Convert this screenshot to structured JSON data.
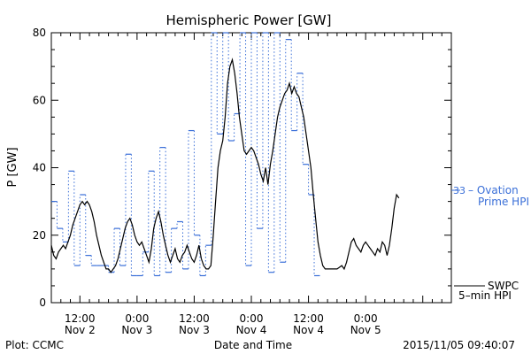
{
  "chart_data": {
    "type": "line",
    "title": "Hemispheric Power [GW]",
    "ylabel": "P [GW]",
    "xlabel": "Date and Time",
    "ylim": [
      0,
      80
    ],
    "xlim": [
      6,
      90
    ],
    "y_ticks": [
      0,
      20,
      40,
      60,
      80
    ],
    "x_ticks": [
      {
        "x": 12,
        "time": "12:00",
        "date": "Nov 2"
      },
      {
        "x": 24,
        "time": "0:00",
        "date": "Nov 3"
      },
      {
        "x": 36,
        "time": "12:00",
        "date": "Nov 3"
      },
      {
        "x": 48,
        "time": "0:00",
        "date": "Nov 4"
      },
      {
        "x": 60,
        "time": "12:00",
        "date": "Nov 4"
      },
      {
        "x": 72,
        "time": "0:00",
        "date": "Nov 5"
      }
    ],
    "series": [
      {
        "name": "Ovation Prime HPI",
        "color": "#3a6fd8",
        "style": "dotted-step",
        "points": [
          [
            6,
            30
          ],
          [
            7.2,
            22
          ],
          [
            8.4,
            18
          ],
          [
            9.6,
            39
          ],
          [
            10.8,
            11
          ],
          [
            12,
            32
          ],
          [
            13.2,
            14
          ],
          [
            14.4,
            11
          ],
          [
            15.6,
            11
          ],
          [
            16.8,
            11
          ],
          [
            18,
            9
          ],
          [
            19.2,
            22
          ],
          [
            20.4,
            11
          ],
          [
            21.6,
            44
          ],
          [
            22.8,
            8
          ],
          [
            24,
            8
          ],
          [
            25.2,
            15
          ],
          [
            26.4,
            39
          ],
          [
            27.6,
            8
          ],
          [
            28.8,
            46
          ],
          [
            30,
            9
          ],
          [
            31.2,
            22
          ],
          [
            32.4,
            24
          ],
          [
            33.6,
            10
          ],
          [
            34.8,
            51
          ],
          [
            36,
            20
          ],
          [
            37.2,
            8
          ],
          [
            38.4,
            17
          ],
          [
            39.6,
            80
          ],
          [
            40.8,
            50
          ],
          [
            42,
            80
          ],
          [
            43.2,
            48
          ],
          [
            44.4,
            56
          ],
          [
            45.6,
            80
          ],
          [
            46.8,
            11
          ],
          [
            48,
            80
          ],
          [
            49.2,
            22
          ],
          [
            50.4,
            80
          ],
          [
            51.6,
            9
          ],
          [
            52.8,
            80
          ],
          [
            54,
            12
          ],
          [
            55.2,
            78
          ],
          [
            56.4,
            51
          ],
          [
            57.6,
            68
          ],
          [
            58.8,
            41
          ],
          [
            60,
            32
          ],
          [
            61.2,
            8
          ]
        ]
      },
      {
        "name": "SWPC 5-min HPI",
        "color": "#000000",
        "style": "solid",
        "points": [
          [
            6,
            17
          ],
          [
            6.5,
            14
          ],
          [
            7,
            13
          ],
          [
            7.5,
            15
          ],
          [
            8,
            16
          ],
          [
            8.5,
            17
          ],
          [
            9,
            16
          ],
          [
            9.5,
            18
          ],
          [
            10,
            20
          ],
          [
            10.5,
            23
          ],
          [
            11,
            25
          ],
          [
            11.5,
            27
          ],
          [
            12,
            29
          ],
          [
            12.5,
            30
          ],
          [
            13,
            29
          ],
          [
            13.5,
            30
          ],
          [
            14,
            29
          ],
          [
            14.5,
            27
          ],
          [
            15,
            24
          ],
          [
            15.5,
            20
          ],
          [
            16,
            17
          ],
          [
            16.5,
            14
          ],
          [
            17,
            12
          ],
          [
            17.5,
            10
          ],
          [
            18,
            10
          ],
          [
            18.5,
            9
          ],
          [
            19,
            10
          ],
          [
            19.5,
            11
          ],
          [
            20,
            13
          ],
          [
            20.5,
            16
          ],
          [
            21,
            19
          ],
          [
            21.5,
            22
          ],
          [
            22,
            24
          ],
          [
            22.5,
            25
          ],
          [
            23,
            23
          ],
          [
            23.5,
            20
          ],
          [
            24,
            18
          ],
          [
            24.5,
            17
          ],
          [
            25,
            18
          ],
          [
            25.5,
            16
          ],
          [
            26,
            14
          ],
          [
            26.5,
            12
          ],
          [
            27,
            16
          ],
          [
            27.5,
            22
          ],
          [
            28,
            25
          ],
          [
            28.5,
            27
          ],
          [
            29,
            24
          ],
          [
            29.5,
            20
          ],
          [
            30,
            17
          ],
          [
            30.5,
            14
          ],
          [
            31,
            12
          ],
          [
            31.5,
            14
          ],
          [
            32,
            16
          ],
          [
            32.5,
            13
          ],
          [
            33,
            12
          ],
          [
            33.5,
            14
          ],
          [
            34,
            15
          ],
          [
            34.5,
            17
          ],
          [
            35,
            15
          ],
          [
            35.5,
            13
          ],
          [
            36,
            12
          ],
          [
            36.5,
            14
          ],
          [
            37,
            17
          ],
          [
            37.5,
            13
          ],
          [
            38,
            11
          ],
          [
            38.5,
            10
          ],
          [
            39,
            10
          ],
          [
            39.5,
            11
          ],
          [
            40,
            20
          ],
          [
            40.5,
            30
          ],
          [
            41,
            40
          ],
          [
            41.5,
            45
          ],
          [
            42,
            48
          ],
          [
            42.5,
            55
          ],
          [
            43,
            65
          ],
          [
            43.5,
            70
          ],
          [
            44,
            72
          ],
          [
            44.5,
            68
          ],
          [
            45,
            62
          ],
          [
            45.5,
            55
          ],
          [
            46,
            50
          ],
          [
            46.5,
            45
          ],
          [
            47,
            44
          ],
          [
            47.5,
            45
          ],
          [
            48,
            46
          ],
          [
            48.5,
            45
          ],
          [
            49,
            43
          ],
          [
            49.5,
            41
          ],
          [
            50,
            38
          ],
          [
            50.5,
            36
          ],
          [
            51,
            40
          ],
          [
            51.5,
            35
          ],
          [
            52,
            41
          ],
          [
            52.5,
            45
          ],
          [
            53,
            50
          ],
          [
            53.5,
            55
          ],
          [
            54,
            58
          ],
          [
            54.5,
            60
          ],
          [
            55,
            62
          ],
          [
            55.5,
            63
          ],
          [
            56,
            65
          ],
          [
            56.5,
            62
          ],
          [
            57,
            64
          ],
          [
            57.5,
            62
          ],
          [
            58,
            61
          ],
          [
            58.5,
            58
          ],
          [
            59,
            55
          ],
          [
            59.5,
            50
          ],
          [
            60,
            45
          ],
          [
            60.5,
            40
          ],
          [
            61,
            32
          ],
          [
            61.5,
            25
          ],
          [
            62,
            18
          ],
          [
            62.5,
            14
          ],
          [
            63,
            11
          ],
          [
            63.5,
            10
          ],
          [
            64,
            10
          ],
          [
            65,
            10
          ],
          [
            66,
            10
          ],
          [
            67,
            11
          ],
          [
            67.5,
            10
          ],
          [
            68,
            12
          ],
          [
            68.5,
            15
          ],
          [
            69,
            18
          ],
          [
            69.5,
            19
          ],
          [
            70,
            17
          ],
          [
            70.5,
            16
          ],
          [
            71,
            15
          ],
          [
            71.5,
            17
          ],
          [
            72,
            18
          ],
          [
            72.5,
            17
          ],
          [
            73,
            16
          ],
          [
            73.5,
            15
          ],
          [
            74,
            14
          ],
          [
            74.5,
            16
          ],
          [
            75,
            15
          ],
          [
            75.5,
            18
          ],
          [
            76,
            17
          ],
          [
            76.5,
            14
          ],
          [
            77,
            17
          ],
          [
            77.5,
            22
          ],
          [
            78,
            28
          ],
          [
            78.5,
            32
          ],
          [
            79,
            31
          ]
        ]
      }
    ]
  },
  "legend": {
    "ovation_value": "33",
    "ovation_line1": "– Ovation",
    "ovation_line2": "Prime HPI",
    "swpc_line1": "SWPC",
    "swpc_line2": "5–min HPI"
  },
  "footer": {
    "left": "Plot: CCMC",
    "center": "Date and Time",
    "right": "2015/11/05 09:40:07"
  }
}
